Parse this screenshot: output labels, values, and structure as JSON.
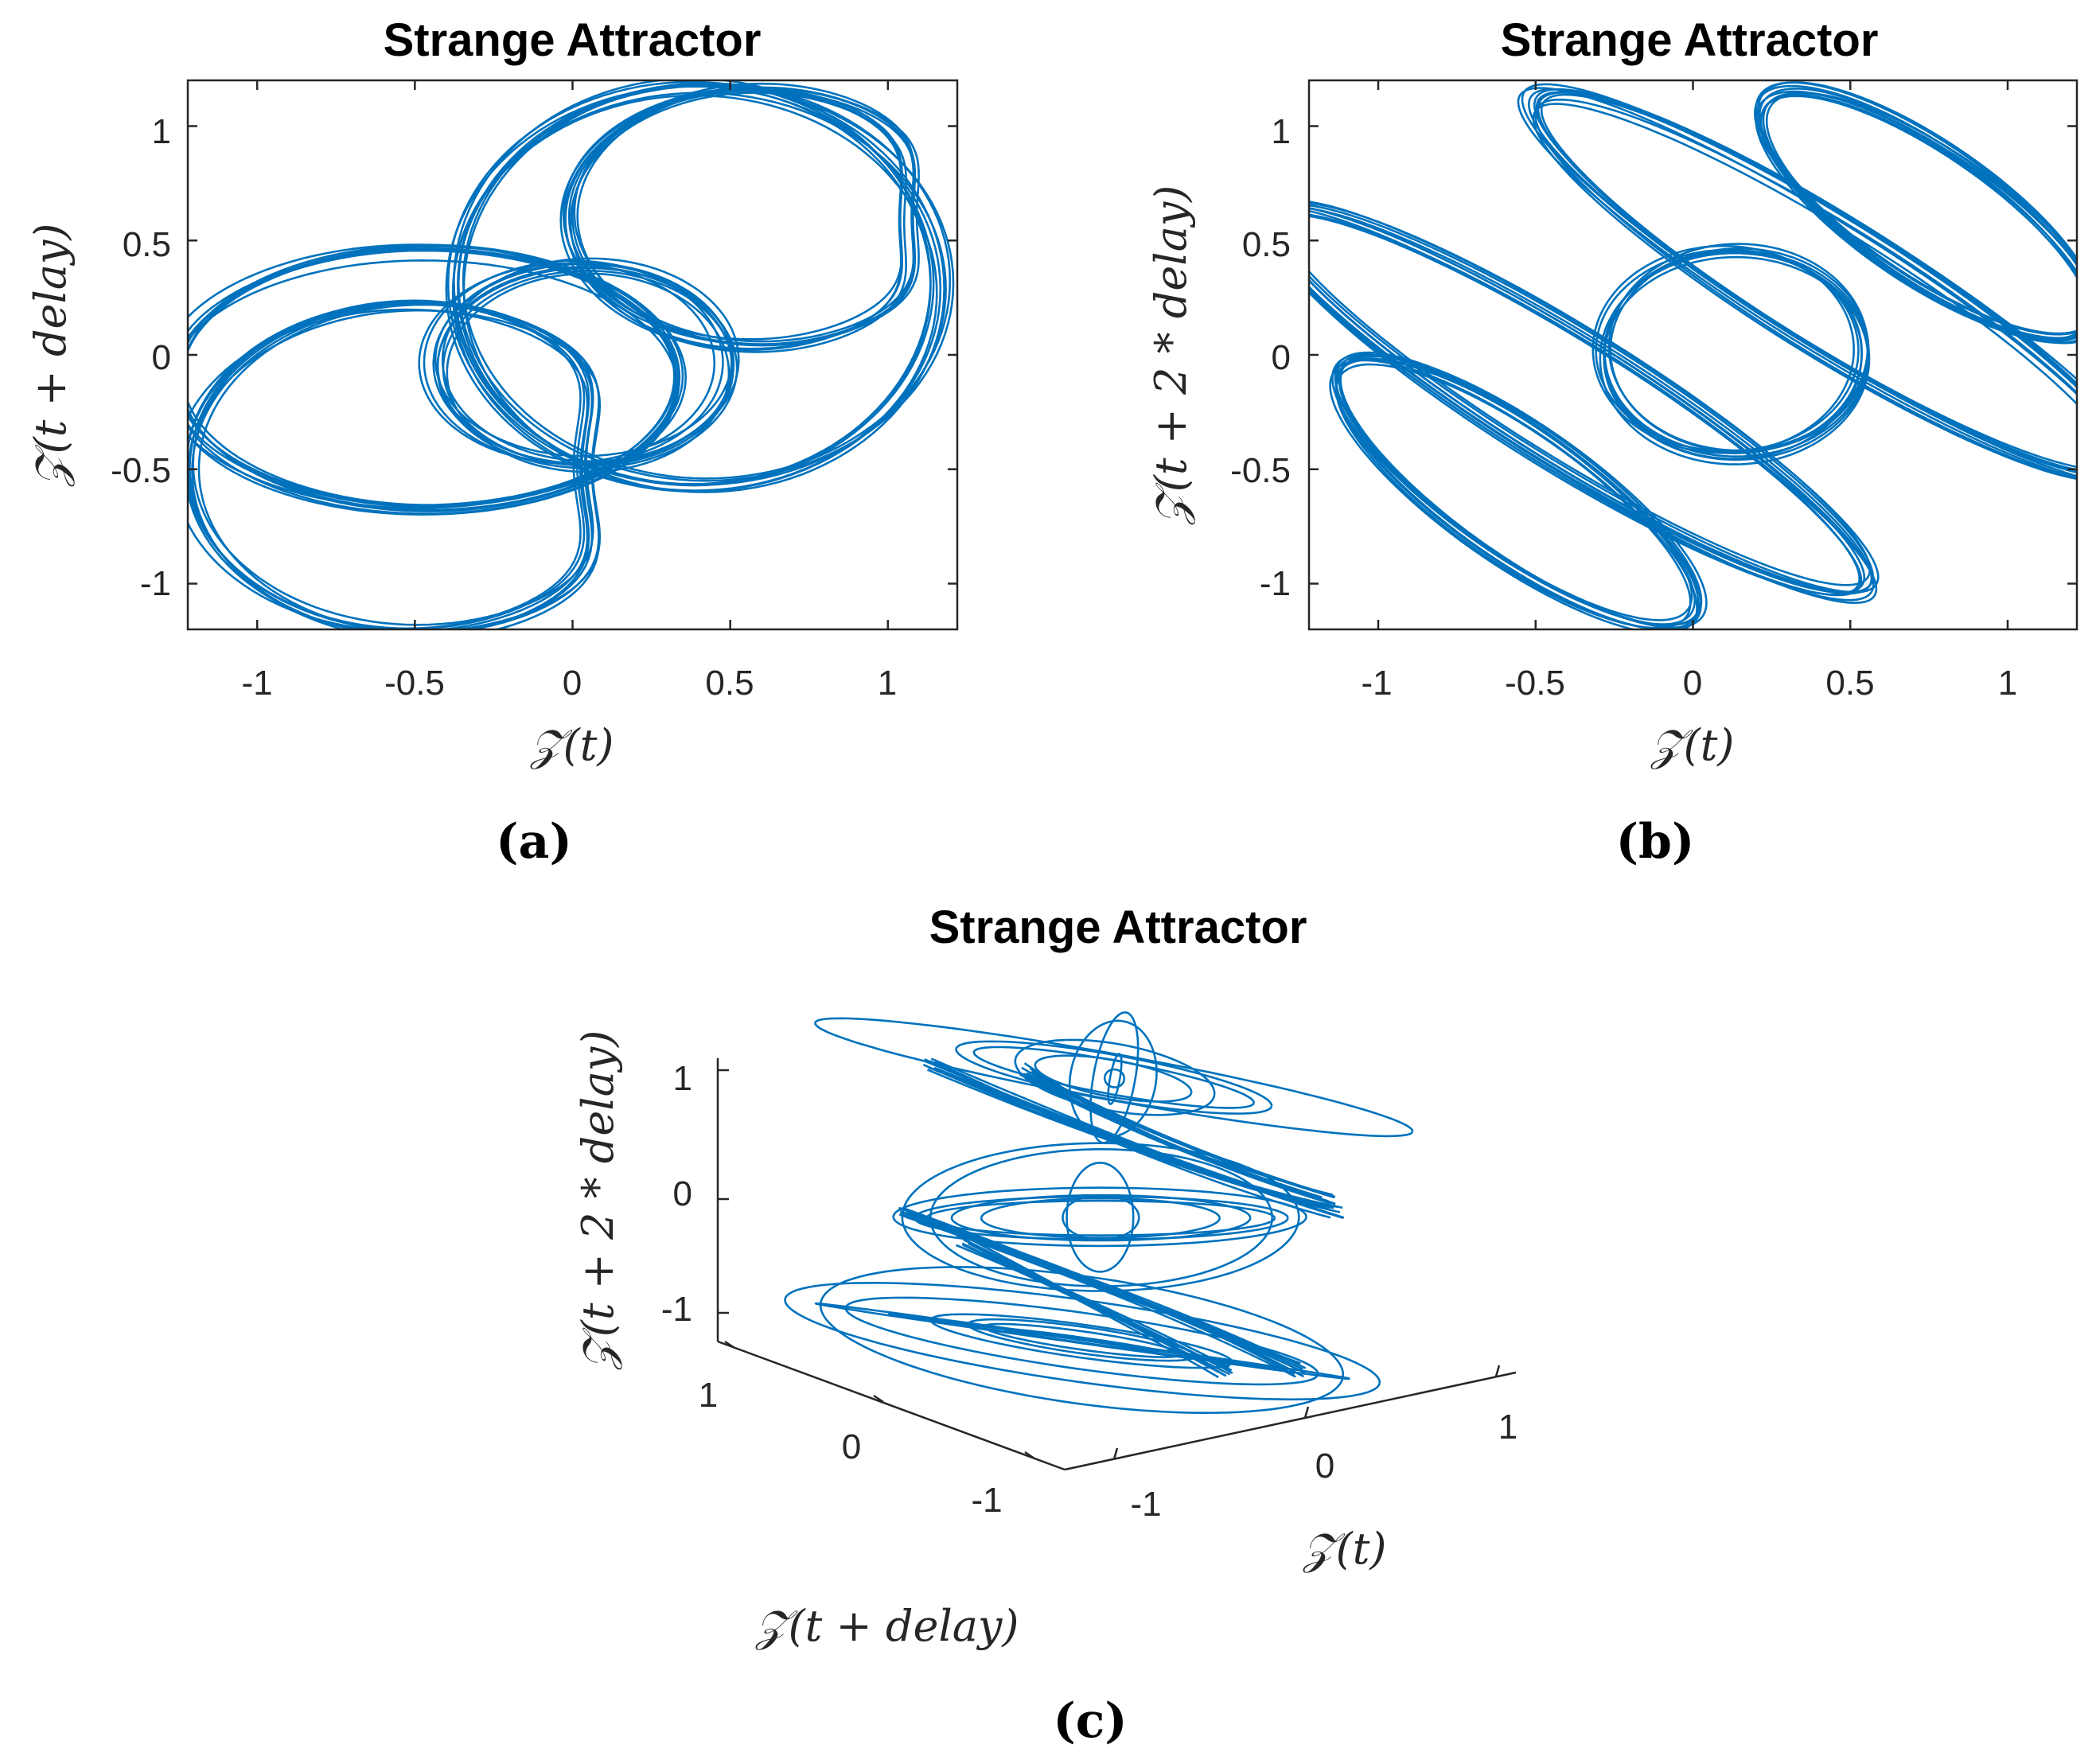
{
  "colors": {
    "trace": "#0072BD",
    "axes": "#262626"
  },
  "panels": [
    {
      "id": "a",
      "caption": "(a)",
      "title": "Strange Attractor",
      "xlabel": "𝒵(t)",
      "ylabel": "𝒵(t + delay)",
      "xticks": [
        "-1",
        "-0.5",
        "0",
        "0.5",
        "1"
      ],
      "yticks": [
        "-1",
        "-0.5",
        "0",
        "0.5",
        "1"
      ]
    },
    {
      "id": "b",
      "caption": "(b)",
      "title": "Strange Attractor",
      "xlabel": "𝒵(t)",
      "ylabel": "𝒵(t + 2 * delay)",
      "xticks": [
        "-1",
        "-0.5",
        "0",
        "0.5",
        "1"
      ],
      "yticks": [
        "-1",
        "-0.5",
        "0",
        "0.5",
        "1"
      ]
    },
    {
      "id": "c",
      "caption": "(c)",
      "title": "Strange Attractor",
      "xlabel": "𝒵(t)",
      "ylabel": "𝒵(t + delay)",
      "zlabel": "𝒵(t + 2 * delay)",
      "xticks": [
        "-1",
        "0",
        "1"
      ],
      "yticks": [
        "1",
        "0",
        "-1"
      ],
      "zticks": [
        "1",
        "0",
        "-1"
      ]
    }
  ],
  "chart_data": [
    {
      "type": "line",
      "title": "Strange Attractor",
      "xlabel": "𝒵(t)",
      "ylabel": "𝒵(t + delay)",
      "xlim": [
        -1.22,
        1.22
      ],
      "ylim": [
        -1.2,
        1.2
      ],
      "xticks": [
        -1,
        -0.5,
        0,
        0.5,
        1
      ],
      "yticks": [
        -1,
        -0.5,
        0,
        0.5,
        1
      ],
      "grid": false,
      "description_loops": [
        {
          "center": [
            -0.3,
            -0.45
          ],
          "radius_x": 0.88,
          "radius_y": 0.78
        },
        {
          "center": [
            -0.47,
            -0.12
          ],
          "radius_x": 0.8,
          "radius_y": 0.58
        },
        {
          "center": [
            0.05,
            -0.05
          ],
          "radius_x": 0.45,
          "radius_y": 0.42
        },
        {
          "center": [
            0.5,
            0.6
          ],
          "radius_x": 0.68,
          "radius_y": 0.58
        },
        {
          "center": [
            0.35,
            0.35
          ],
          "radius_x": 0.82,
          "radius_y": 0.85
        }
      ]
    },
    {
      "type": "line",
      "title": "Strange Attractor",
      "xlabel": "𝒵(t)",
      "ylabel": "𝒵(t + 2 * delay)",
      "xlim": [
        -1.22,
        1.22
      ],
      "ylim": [
        -1.2,
        1.2
      ],
      "xticks": [
        -1,
        -0.5,
        0,
        0.5,
        1
      ],
      "yticks": [
        -1,
        -0.5,
        0,
        0.5,
        1
      ],
      "grid": false
    },
    {
      "type": "line",
      "title": "Strange Attractor",
      "xlabel": "𝒵(t)",
      "ylabel": "𝒵(t + delay)",
      "zlabel": "𝒵(t + 2 * delay)",
      "xticks": [
        -1,
        0,
        1
      ],
      "yticks": [
        -1,
        0,
        1
      ],
      "zticks": [
        -1,
        0,
        1
      ],
      "grid": false
    }
  ]
}
